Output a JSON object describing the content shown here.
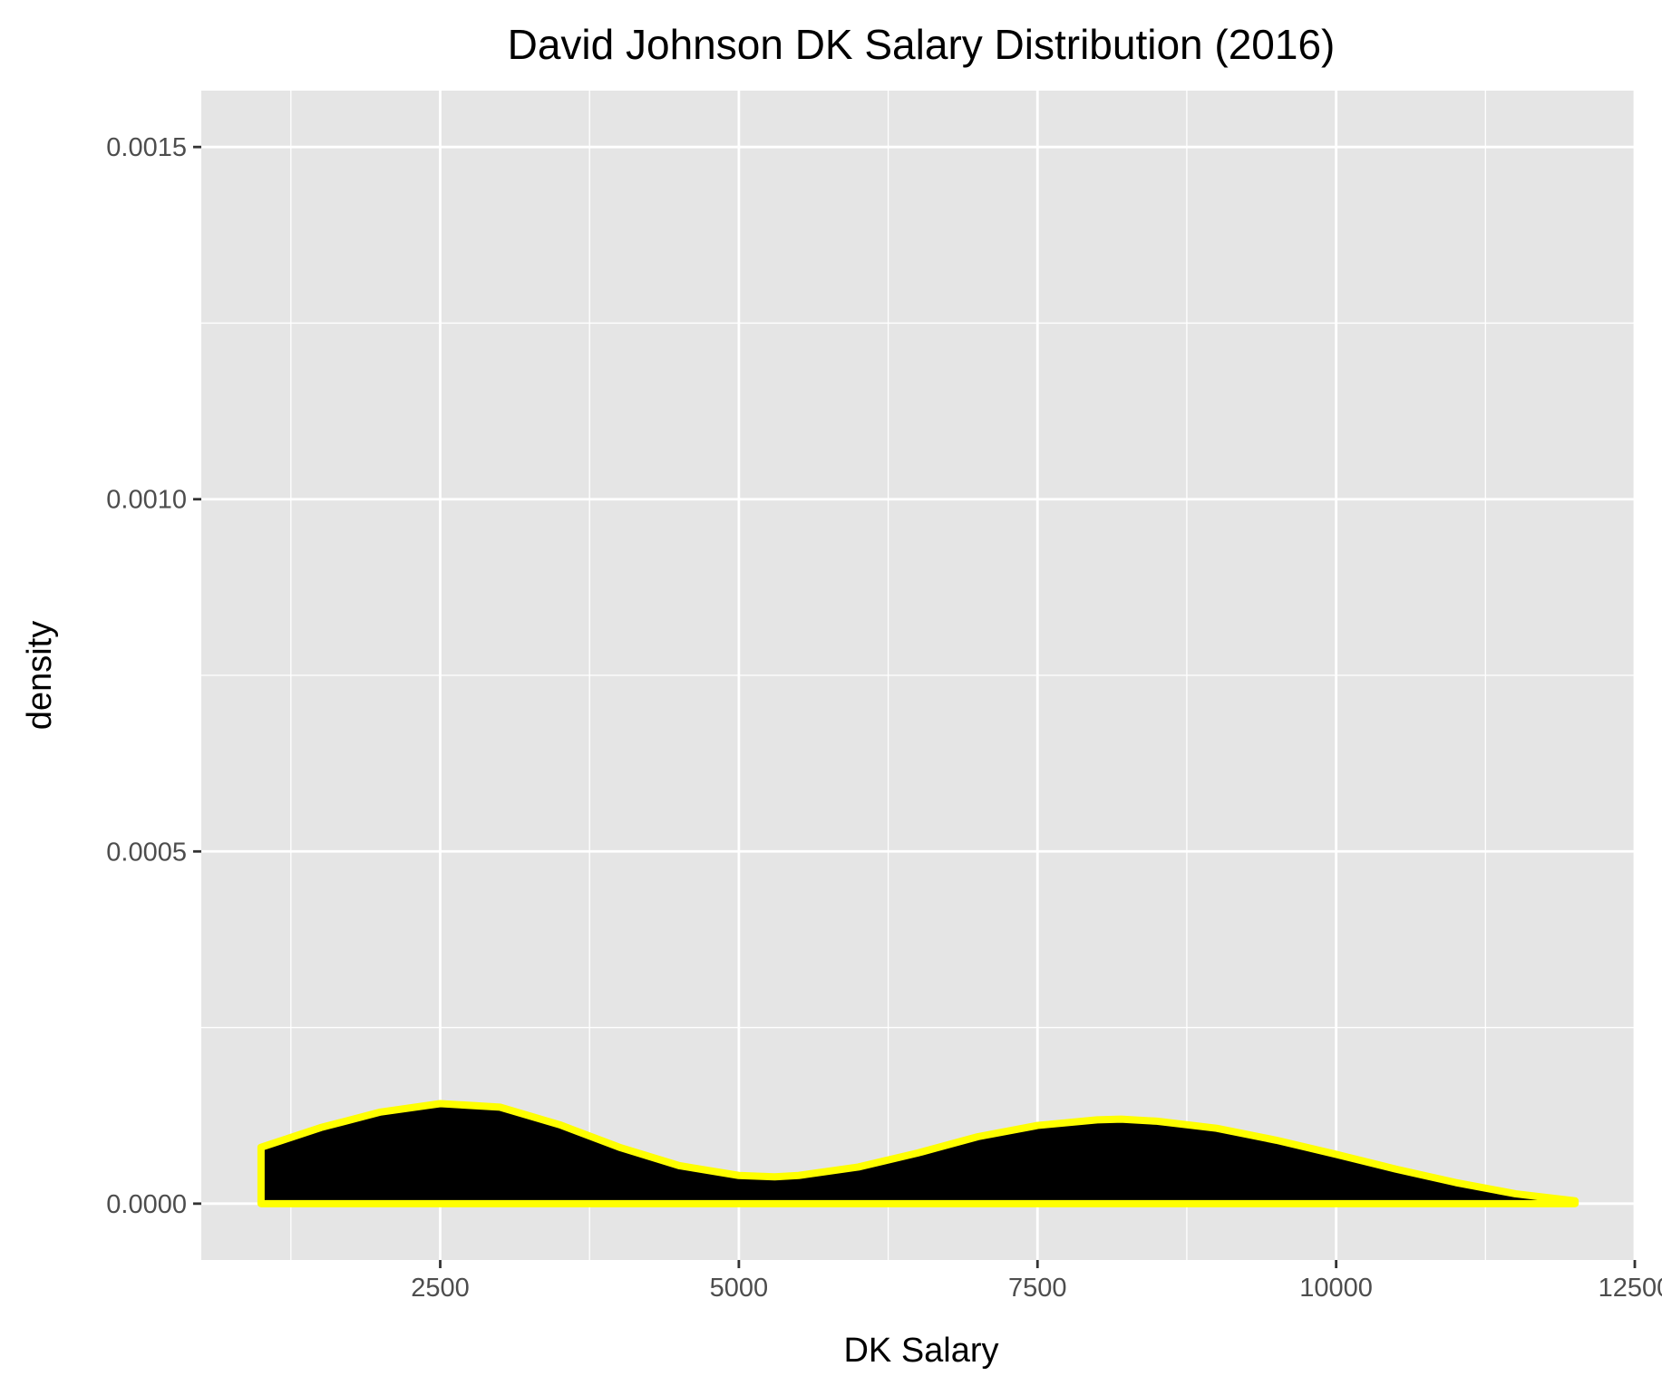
{
  "chart_data": {
    "type": "area",
    "title": "David Johnson DK Salary Distribution (2016)",
    "xlabel": "DK Salary",
    "ylabel": "density",
    "xlim": [
      500,
      12500
    ],
    "ylim": [
      -8e-05,
      0.00158
    ],
    "x_ticks": [
      2500,
      5000,
      7500,
      10000,
      12500
    ],
    "x_tick_labels": [
      "2500",
      "5000",
      "7500",
      "10000",
      "12500"
    ],
    "x_minor_ticks": [
      1250,
      3750,
      6250,
      8750,
      11250
    ],
    "y_ticks": [
      0,
      0.0005,
      0.001,
      0.0015
    ],
    "y_tick_labels": [
      "0.0000",
      "0.0005",
      "0.0010",
      "0.0015"
    ],
    "y_minor_ticks": [
      0.00025,
      0.00075,
      0.00125
    ],
    "grid": true,
    "legend": "none",
    "colors": {
      "panel_background": "#e5e5e5",
      "grid": "#ffffff",
      "fill": "#000000",
      "outline": "#ffff00"
    },
    "series": [
      {
        "x": [
          1000,
          1500,
          2000,
          2500,
          3000,
          3500,
          4000,
          4500,
          5000,
          5300,
          5500,
          6000,
          6500,
          7000,
          7500,
          8000,
          8200,
          8500,
          9000,
          9500,
          10000,
          10500,
          11000,
          11500,
          12000
        ],
        "y": [
          8e-05,
          0.000108,
          0.00013,
          0.000142,
          0.000137,
          0.000112,
          8e-05,
          5.4e-05,
          4e-05,
          3.8e-05,
          4e-05,
          5.2e-05,
          7.2e-05,
          9.5e-05,
          0.000111,
          0.000119,
          0.00012,
          0.000117,
          0.000107,
          9e-05,
          7e-05,
          4.9e-05,
          3e-05,
          1.4e-05,
          4e-06
        ]
      }
    ]
  }
}
